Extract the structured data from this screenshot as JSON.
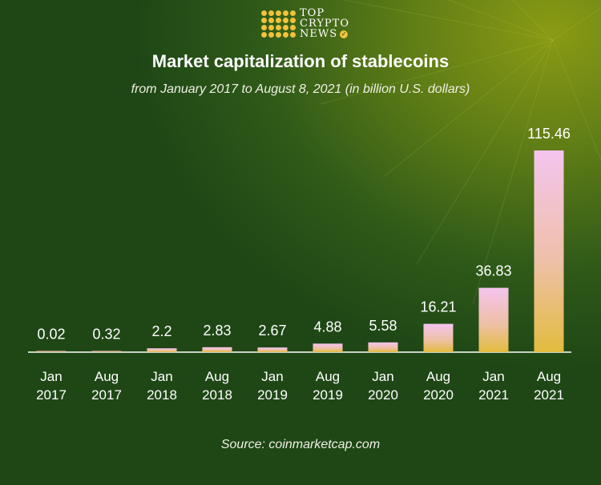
{
  "brand": {
    "line1": "TOP",
    "line2": "CRYPTO",
    "line3": "NEWS",
    "check_icon": "check-badge-icon"
  },
  "colors": {
    "bar_top": "#f4c4ee",
    "bar_mid": "#eec0a8",
    "bar_bottom": "#e2bc3e",
    "accent": "#f0c23a"
  },
  "chart_data": {
    "type": "bar",
    "title": "Market capitalization of stablecoins",
    "subtitle": "from January 2017 to August 8, 2021 (in billion U.S. dollars)",
    "categories": [
      [
        "Jan",
        "2017"
      ],
      [
        "Aug",
        "2017"
      ],
      [
        "Jan",
        "2018"
      ],
      [
        "Aug",
        "2018"
      ],
      [
        "Jan",
        "2019"
      ],
      [
        "Aug",
        "2019"
      ],
      [
        "Jan",
        "2020"
      ],
      [
        "Aug",
        "2020"
      ],
      [
        "Jan",
        "2021"
      ],
      [
        "Aug",
        "2021"
      ]
    ],
    "values": [
      0.02,
      0.32,
      2.2,
      2.83,
      2.67,
      4.88,
      5.58,
      16.21,
      36.83,
      115.46
    ],
    "labels": [
      "0.02",
      "0.32",
      "2.2",
      "2.83",
      "2.67",
      "4.88",
      "5.58",
      "16.21",
      "36.83",
      "115.46"
    ],
    "ylim": [
      0,
      115.46
    ],
    "xlabel": "",
    "ylabel": "",
    "source": "Source: coinmarketcap.com"
  }
}
